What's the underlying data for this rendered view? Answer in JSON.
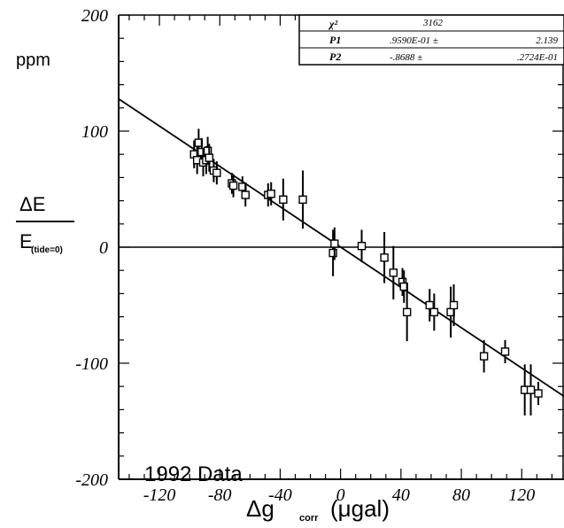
{
  "chart_data": {
    "type": "scatter",
    "title": "",
    "xlabel_main": "Δg",
    "xlabel_sub": "corr",
    "xlabel_unit": "(μgal)",
    "ylabel_top": "ppm",
    "ylabel_num": "ΔE",
    "ylabel_den_main": "E",
    "ylabel_den_sub": "(tide=0)",
    "annotation": "1992 Data",
    "xlim": [
      -147,
      148
    ],
    "ylim": [
      -200,
      200
    ],
    "x_ticks": [
      -120,
      -80,
      -40,
      0,
      40,
      80,
      120
    ],
    "x_tick_labels": [
      "-120",
      "-80",
      "-40",
      "0",
      "40",
      "80",
      "120"
    ],
    "y_ticks": [
      -200,
      -100,
      0,
      100,
      200
    ],
    "y_tick_labels": [
      "-200",
      "-100",
      "0",
      "100",
      "200"
    ],
    "fit_line": {
      "slope": -0.8688,
      "intercept": 0.0959
    },
    "zero_line": 0,
    "stats_box": [
      {
        "label": "χ²",
        "value": "3162",
        "error": ""
      },
      {
        "label": "P1",
        "value": ".9590E-01 ±",
        "error": "2.139"
      },
      {
        "label": "P2",
        "value": "-.8688 ±",
        "error": ".2724E-01"
      }
    ],
    "points": [
      {
        "x": -97,
        "y": 80,
        "err": 12
      },
      {
        "x": -95,
        "y": 75,
        "err": 12
      },
      {
        "x": -94,
        "y": 90,
        "err": 12
      },
      {
        "x": -92,
        "y": 82,
        "err": 12
      },
      {
        "x": -91,
        "y": 73,
        "err": 12
      },
      {
        "x": -89,
        "y": 75,
        "err": 12
      },
      {
        "x": -88,
        "y": 83,
        "err": 12
      },
      {
        "x": -87,
        "y": 77,
        "err": 12
      },
      {
        "x": -84,
        "y": 66,
        "err": 10
      },
      {
        "x": -82,
        "y": 64,
        "err": 10
      },
      {
        "x": -72,
        "y": 55,
        "err": 9
      },
      {
        "x": -71,
        "y": 53,
        "err": 10
      },
      {
        "x": -65,
        "y": 52,
        "err": 9
      },
      {
        "x": -63,
        "y": 45,
        "err": 10
      },
      {
        "x": -48,
        "y": 45,
        "err": 10
      },
      {
        "x": -46,
        "y": 46,
        "err": 10
      },
      {
        "x": -38,
        "y": 41,
        "err": 18
      },
      {
        "x": -25,
        "y": 41,
        "err": 25
      },
      {
        "x": -5,
        "y": -5,
        "err": 20
      },
      {
        "x": -4,
        "y": 3,
        "err": 14
      },
      {
        "x": 14,
        "y": 1,
        "err": 14
      },
      {
        "x": 29,
        "y": -9,
        "err": 22
      },
      {
        "x": 35,
        "y": -22,
        "err": 23
      },
      {
        "x": 41,
        "y": -30,
        "err": 12
      },
      {
        "x": 42,
        "y": -34,
        "err": 14
      },
      {
        "x": 44,
        "y": -56,
        "err": 25
      },
      {
        "x": 59,
        "y": -50,
        "err": 14
      },
      {
        "x": 62,
        "y": -56,
        "err": 16
      },
      {
        "x": 73,
        "y": -56,
        "err": 22
      },
      {
        "x": 75,
        "y": -50,
        "err": 18
      },
      {
        "x": 95,
        "y": -94,
        "err": 14
      },
      {
        "x": 109,
        "y": -90,
        "err": 10
      },
      {
        "x": 122,
        "y": -123,
        "err": 22
      },
      {
        "x": 126,
        "y": -123,
        "err": 22
      },
      {
        "x": 131,
        "y": -126,
        "err": 10
      }
    ]
  }
}
